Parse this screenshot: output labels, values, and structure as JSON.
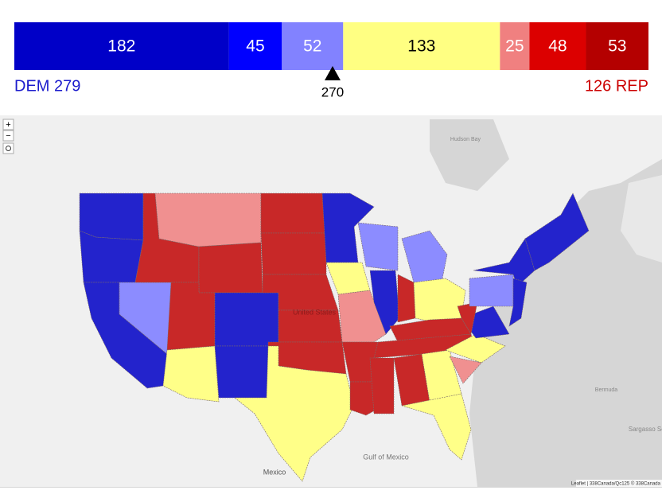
{
  "bar": {
    "segments": [
      {
        "value": 182,
        "color": "#0000c8",
        "text_color": "#ffffff"
      },
      {
        "value": 45,
        "color": "#0000ff",
        "text_color": "#ffffff"
      },
      {
        "value": 52,
        "color": "#8282ff",
        "text_color": "#ffffff"
      },
      {
        "value": 133,
        "color": "#ffff82",
        "text_color": "#000000"
      },
      {
        "value": 25,
        "color": "#f08080",
        "text_color": "#ffffff"
      },
      {
        "value": 48,
        "color": "#dc0000",
        "text_color": "#ffffff"
      },
      {
        "value": 53,
        "color": "#b40000",
        "text_color": "#ffffff"
      }
    ],
    "threshold": 270,
    "dem_label": "DEM 279",
    "rep_label": "126 REP"
  },
  "map": {
    "zoom_in": "+",
    "zoom_out": "−",
    "labels": [
      "United States",
      "Gulf of Mexico",
      "Mexico",
      "Bermuda",
      "Sargasso Sea",
      "Hudson Bay"
    ],
    "attribution": "Leaflet | 338Canada/Qc125 © 338Canada"
  }
}
